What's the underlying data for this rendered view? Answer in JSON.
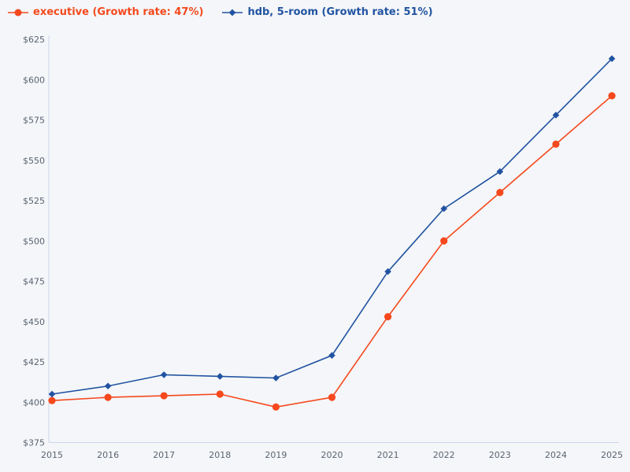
{
  "page": {
    "background": "#f4f6f9"
  },
  "chart_data": {
    "type": "line",
    "title": "",
    "xlabel": "",
    "ylabel": "",
    "grid": false,
    "legend_position": "top-left",
    "x": [
      2015,
      2016,
      2017,
      2018,
      2019,
      2020,
      2021,
      2022,
      2023,
      2024,
      2025
    ],
    "x_tick_labels": [
      "2015",
      "2016",
      "2017",
      "2018",
      "2019",
      "2020",
      "2021",
      "2022",
      "2023",
      "2024",
      "2025"
    ],
    "y_ticks": [
      "$375",
      "$400",
      "$425",
      "$450",
      "$475",
      "$500",
      "$525",
      "$550",
      "$575",
      "$600",
      "$625"
    ],
    "y_tick_values": [
      375,
      400,
      425,
      450,
      475,
      500,
      525,
      550,
      575,
      600,
      625
    ],
    "ylim": [
      375,
      625
    ],
    "y_tick_prefix": "$",
    "series": [
      {
        "name": "executive",
        "growth_rate": "47%",
        "legend_label": "executive (Growth rate: 47%)",
        "color": "#f5491d",
        "marker": "circle",
        "values": [
          401,
          403,
          404,
          405,
          397,
          403,
          453,
          500,
          530,
          560,
          590
        ]
      },
      {
        "name": "hdb, 5-room",
        "growth_rate": "51%",
        "legend_label": "hdb, 5-room (Growth rate: 51%)",
        "color": "#2153a1",
        "marker": "diamond",
        "values": [
          405,
          410,
          417,
          416,
          415,
          429,
          481,
          520,
          543,
          578,
          613
        ]
      }
    ],
    "colors": {
      "axis_line": "#ccd7ea",
      "tick_text": "#5a6370"
    }
  }
}
